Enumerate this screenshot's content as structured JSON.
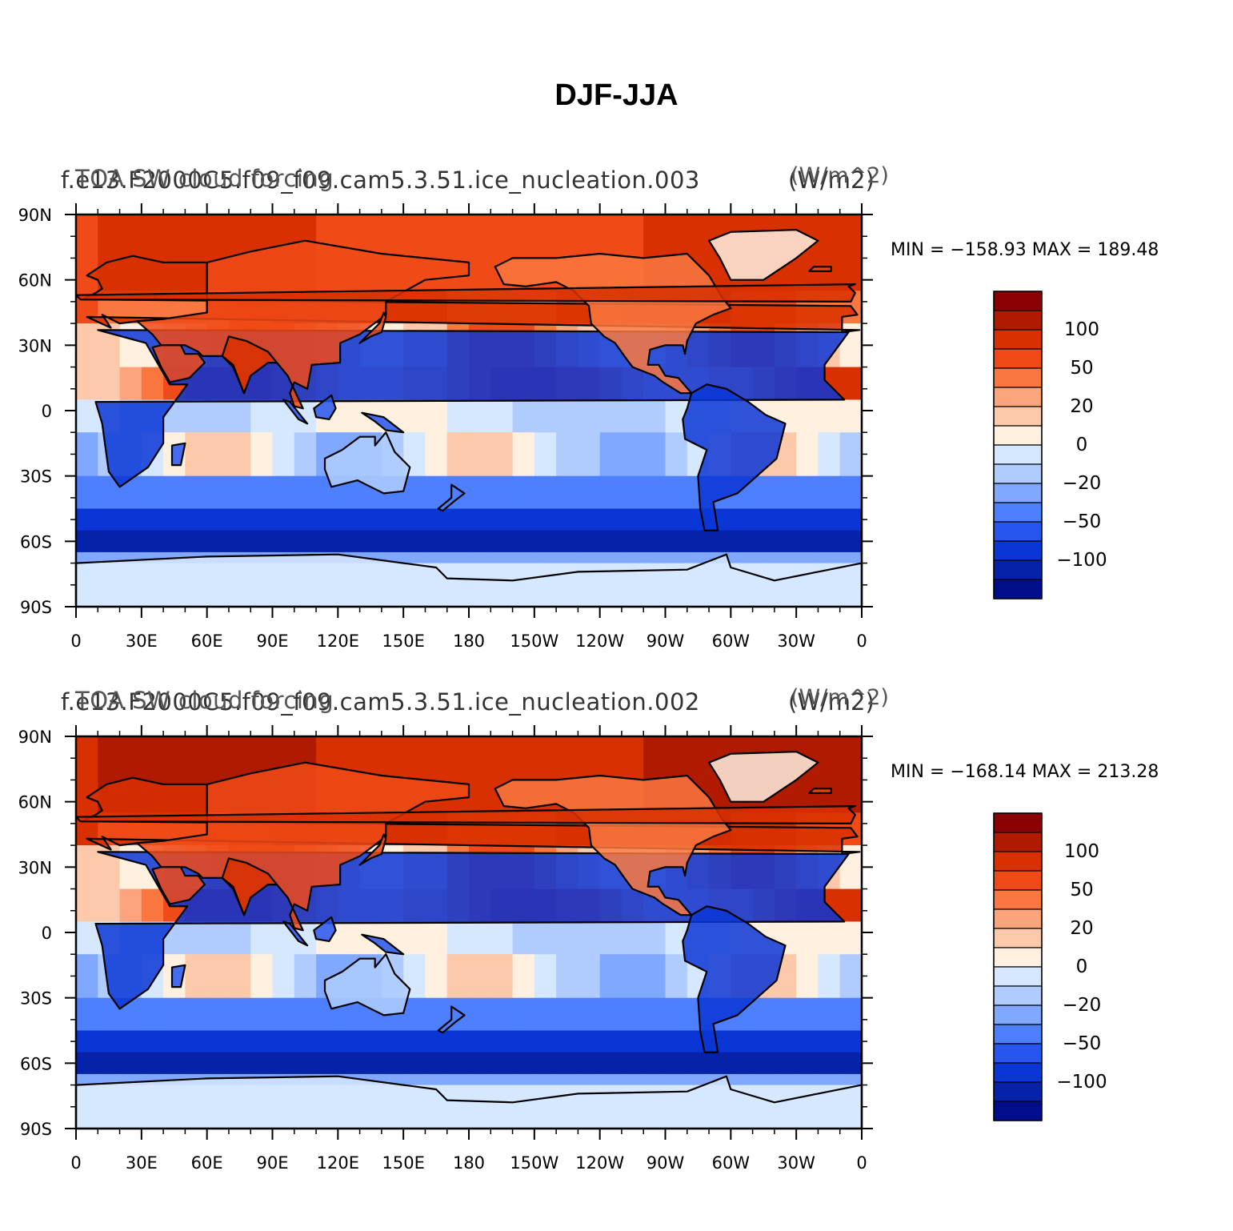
{
  "figure": {
    "title": "DJF-JJA"
  },
  "panels": [
    {
      "subtitle_left_a": "f.e13.F2000C5.f09_f09.cam5.3.51.ice_nucleation.003",
      "subtitle_left_b": "TOA SW cloud forcing",
      "units_a": "(W/m2)",
      "units_b": "(W/m^2)",
      "min_label": "MIN",
      "min_value": "−158.93",
      "max_label": "MAX",
      "max_value": "189.48"
    },
    {
      "subtitle_left_a": "f.e13.F2000C5.f09_f09.cam5.3.51.ice_nucleation.002",
      "subtitle_left_b": "TOA SW cloud forcing",
      "units_a": "(W/m2)",
      "units_b": "(W/m^2)",
      "min_label": "MIN",
      "min_value": "−168.14",
      "max_label": "MAX",
      "max_value": "213.28"
    }
  ],
  "axes": {
    "lat_ticks": [
      "90N",
      "60N",
      "30N",
      "0",
      "30S",
      "60S",
      "90S"
    ],
    "lon_ticks": [
      "0",
      "30E",
      "60E",
      "90E",
      "120E",
      "150E",
      "180",
      "150W",
      "120W",
      "90W",
      "60W",
      "30W",
      "0"
    ]
  },
  "colorbar": {
    "levels": [
      -100,
      -50,
      -20,
      0,
      20,
      50,
      100
    ],
    "labels": [
      "100",
      "50",
      "20",
      "0",
      "−20",
      "−50",
      "−100"
    ],
    "colors_top_to_bottom": [
      "#8b0000",
      "#b01a00",
      "#d83000",
      "#f04a18",
      "#fa7840",
      "#fca47c",
      "#fdc9ab",
      "#fff0e0",
      "#d6e8ff",
      "#b0ccff",
      "#80a8ff",
      "#4d7fff",
      "#2655f0",
      "#0a36d6",
      "#0522a8",
      "#000e8c"
    ]
  },
  "chart_data": {
    "type": "heatmap",
    "title": "DJF-JJA",
    "variable": "TOA SW cloud forcing",
    "units": "(W/m2)",
    "x_axis": {
      "range": [
        0,
        360
      ],
      "ticks": [
        "0",
        "30E",
        "60E",
        "90E",
        "120E",
        "150E",
        "180",
        "150W",
        "120W",
        "90W",
        "60W",
        "30W",
        "0"
      ]
    },
    "y_axis": {
      "range": [
        -90,
        90
      ],
      "ticks": [
        "90N",
        "60N",
        "30N",
        "0",
        "30S",
        "60S",
        "90S"
      ]
    },
    "contour_levels": [
      -100,
      -50,
      -20,
      0,
      20,
      50,
      100
    ],
    "series": [
      {
        "name": "f.e13.F2000C5.f09_f09.cam5.3.51.ice_nucleation.003",
        "min": -158.93,
        "max": 189.48
      },
      {
        "name": "f.e13.F2000C5.f09_f09.cam5.3.51.ice_nucleation.002",
        "min": -168.14,
        "max": 213.28
      }
    ]
  }
}
